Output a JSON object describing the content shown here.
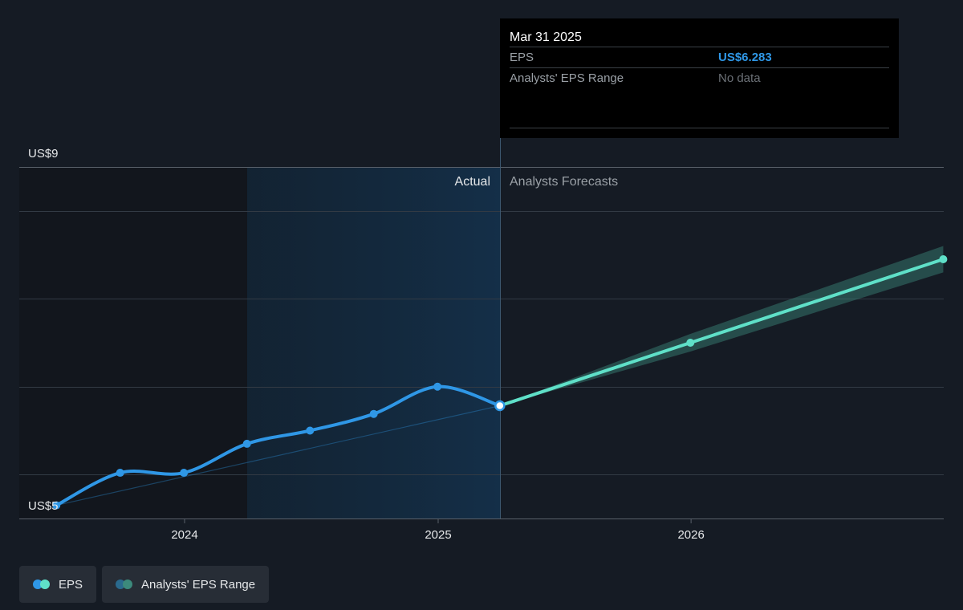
{
  "chart_data": {
    "type": "line",
    "ylim": [
      5,
      9
    ],
    "y_tick_labels": [
      "US$9",
      "US$5"
    ],
    "x_tick_labels": [
      "2024",
      "2025",
      "2026"
    ],
    "region_labels": {
      "actual": "Actual",
      "forecast": "Analysts Forecasts"
    },
    "series": [
      {
        "name": "EPS",
        "color": "#2f97e6",
        "x": [
          "2023-06-30",
          "2023-09-30",
          "2023-12-31",
          "2024-03-31",
          "2024-06-30",
          "2024-09-30",
          "2024-12-31",
          "2025-03-31"
        ],
        "values": [
          5.15,
          5.52,
          5.52,
          5.85,
          6.0,
          6.19,
          6.5,
          6.283
        ]
      },
      {
        "name": "EPS",
        "color": "#5fe0c8",
        "x": [
          "2025-03-31",
          "2025-12-31",
          "2026-12-31"
        ],
        "values": [
          6.283,
          7.0,
          7.95
        ]
      }
    ],
    "analysts_eps_range": {
      "name": "Analysts' EPS Range",
      "x": [
        "2025-03-31",
        "2025-12-31",
        "2026-12-31"
      ],
      "low": [
        6.283,
        6.9,
        7.8
      ],
      "high": [
        6.283,
        7.1,
        8.1
      ]
    },
    "grid": true
  },
  "tooltip": {
    "date": "Mar 31 2025",
    "rows": [
      {
        "label": "EPS",
        "value": "US$6.283"
      },
      {
        "label": "Analysts' EPS Range",
        "value": "No data"
      }
    ]
  },
  "legend": {
    "items": [
      {
        "label": "EPS",
        "colors": [
          "#2f97e6",
          "#5fe0c8"
        ]
      },
      {
        "label": "Analysts' EPS Range",
        "colors": [
          "#2a6a8e",
          "#3c8a7c"
        ]
      }
    ]
  }
}
